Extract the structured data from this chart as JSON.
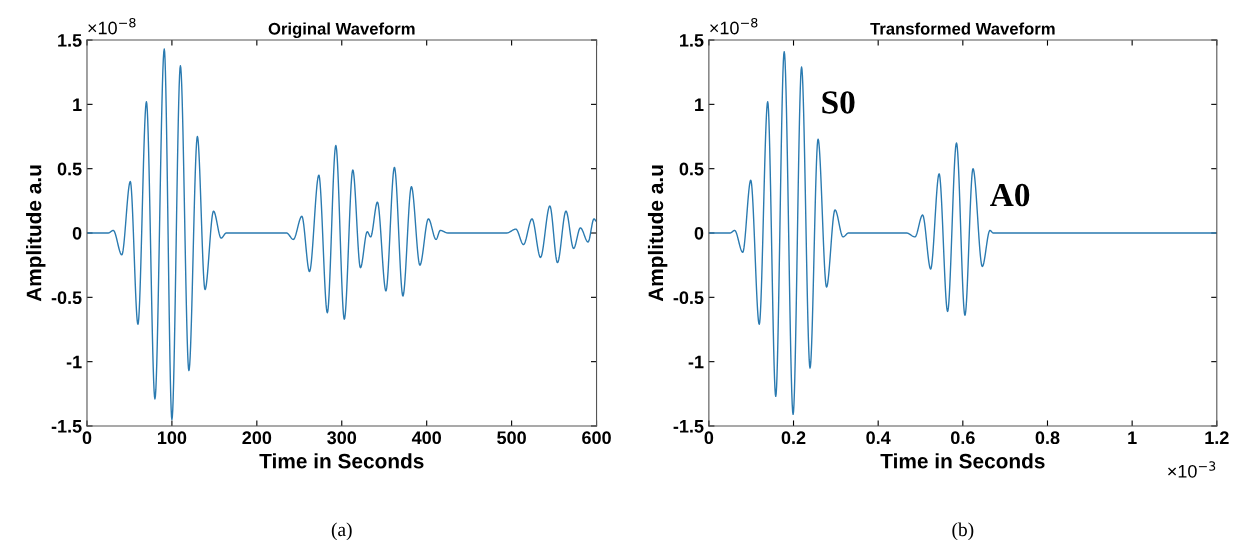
{
  "chart_data": [
    {
      "type": "line",
      "title": "Original Waveform",
      "xlabel": "Time in Seconds",
      "ylabel": "Amplitude a.u",
      "color": "#2a7ab0",
      "x": [
        0,
        25,
        31,
        41,
        51,
        60,
        70,
        80,
        91,
        100,
        110,
        120,
        130,
        139,
        149,
        158,
        164,
        235,
        243,
        253,
        262,
        273,
        283,
        293,
        303,
        313,
        322,
        330,
        334,
        342,
        352,
        362,
        372,
        382,
        392,
        402,
        411,
        416,
        425,
        494,
        505,
        514,
        524,
        534,
        545,
        554,
        564,
        573,
        581,
        590,
        597,
        600
      ],
      "values": [
        0,
        0,
        0.02,
        -0.17,
        0.4,
        -0.71,
        1.02,
        -1.29,
        1.43,
        -1.45,
        1.3,
        -1.07,
        0.75,
        -0.44,
        0.17,
        -0.04,
        0,
        0,
        -0.05,
        0.13,
        -0.3,
        0.45,
        -0.62,
        0.68,
        -0.67,
        0.49,
        -0.27,
        0.01,
        -0.03,
        0.24,
        -0.45,
        0.51,
        -0.49,
        0.36,
        -0.25,
        0.11,
        -0.05,
        0.02,
        0,
        0,
        0.03,
        -0.09,
        0.11,
        -0.19,
        0.21,
        -0.23,
        0.17,
        -0.12,
        0.04,
        -0.07,
        0.11,
        0.09
      ],
      "xlim": [
        0,
        600
      ],
      "ylim": [
        -1.5,
        1.5
      ],
      "xticks": [
        0,
        100,
        200,
        300,
        400,
        500,
        600
      ],
      "yticks": [
        -1.5,
        -1,
        -0.5,
        0,
        0.5,
        1,
        1.5
      ],
      "annotations": [
        "×10$^{−8}$",
        "(a)"
      ]
    },
    {
      "type": "line",
      "title": "Transformed Waveform",
      "xlabel": "Time in Seconds",
      "ylabel": "Amplitude a.u",
      "color": "#2a7ab0",
      "x": [
        0,
        0.05,
        0.061,
        0.08,
        0.099,
        0.119,
        0.139,
        0.158,
        0.178,
        0.199,
        0.219,
        0.239,
        0.258,
        0.278,
        0.298,
        0.317,
        0.33,
        0.467,
        0.487,
        0.505,
        0.524,
        0.544,
        0.564,
        0.585,
        0.605,
        0.624,
        0.646,
        0.664,
        0.672,
        1.2
      ],
      "values": [
        0,
        0,
        0.02,
        -0.15,
        0.41,
        -0.71,
        1.02,
        -1.27,
        1.41,
        -1.41,
        1.29,
        -1.05,
        0.73,
        -0.42,
        0.18,
        -0.03,
        0,
        0,
        -0.03,
        0.14,
        -0.28,
        0.46,
        -0.61,
        0.7,
        -0.64,
        0.5,
        -0.26,
        0.02,
        0,
        0
      ],
      "xlim": [
        0,
        1.2
      ],
      "ylim": [
        -1.5,
        1.5
      ],
      "xticks": [
        0,
        0.2,
        0.4,
        0.6,
        0.8,
        1,
        1.2
      ],
      "yticks": [
        -1.5,
        -1,
        -0.5,
        0,
        0.5,
        1,
        1.5
      ],
      "annotations": [
        "S0",
        "A0",
        "×10$^{−8}$",
        "×10$^{−3}$",
        "(b)"
      ]
    }
  ]
}
